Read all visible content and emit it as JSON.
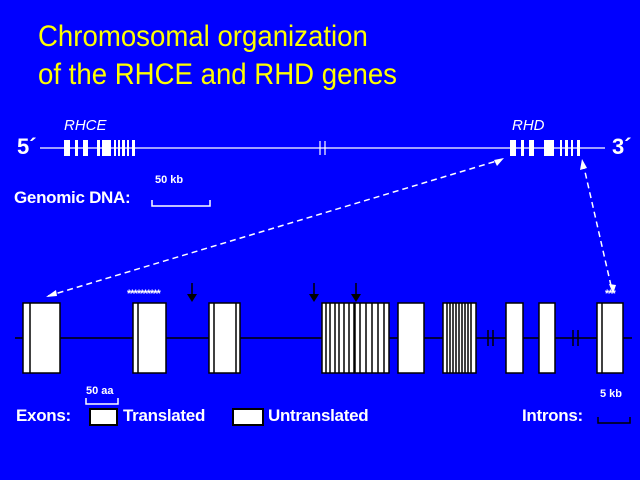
{
  "title": {
    "line1": "Chromosomal organization",
    "line2": "of the RHCE and RHD genes"
  },
  "genomic": {
    "five_prime": "5´",
    "three_prime": "3´",
    "rhce_label": "RHCE",
    "rhd_label": "RHD",
    "scale_label": "50 kb",
    "dna_label": "Genomic DNA:"
  },
  "gene_detail": {
    "stars_left": "**********",
    "stars_right": "***",
    "aa_scale_label": "50 aa",
    "kb_scale_label": "5 kb"
  },
  "legend": {
    "exons_label": "Exons:",
    "translated_label": "Translated",
    "untranslated_label": "Untranslated",
    "introns_label": "Introns:"
  },
  "colors": {
    "background": "#0000ff",
    "title": "#ffff00",
    "text": "#ffffff",
    "exon_fill": "#ffffff",
    "exon_border": "#000000"
  }
}
